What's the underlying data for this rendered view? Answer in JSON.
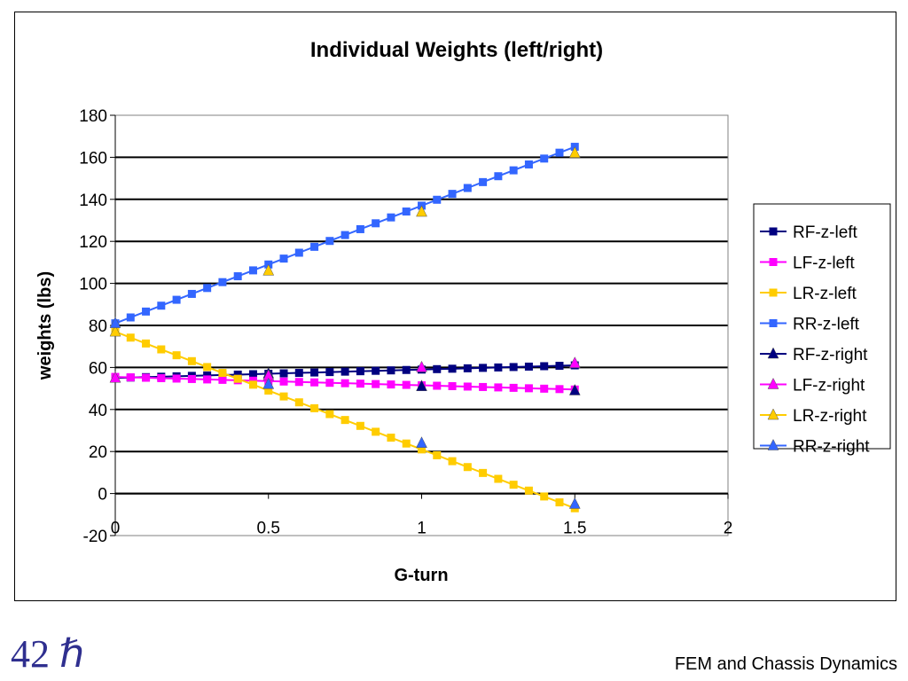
{
  "slide": {
    "number": "42 ℏ",
    "footer": "FEM and Chassis Dynamics"
  },
  "chart_data": {
    "type": "line",
    "title": "Individual Weights (left/right)",
    "xlabel": "G-turn",
    "ylabel": "weights (lbs)",
    "xlim": [
      0,
      2
    ],
    "ylim": [
      -20,
      180
    ],
    "x_ticks": [
      "0",
      "0.5",
      "1",
      "1.5",
      "2"
    ],
    "y_ticks": [
      "-20",
      "0",
      "20",
      "40",
      "60",
      "80",
      "100",
      "120",
      "140",
      "160",
      "180"
    ],
    "grid": "horizontal major gridlines",
    "legend_position": "right",
    "series": [
      {
        "name": "RF-z-left",
        "color": "#000080",
        "marker": "square",
        "x": [
          0,
          0.05,
          0.1,
          0.15,
          0.2,
          0.25,
          0.3,
          0.35,
          0.4,
          0.45,
          0.5,
          0.55,
          0.6,
          0.65,
          0.7,
          0.75,
          0.8,
          0.85,
          0.9,
          0.95,
          1,
          1.05,
          1.1,
          1.15,
          1.2,
          1.25,
          1.3,
          1.35,
          1.4,
          1.45,
          1.5
        ],
        "y": [
          55,
          55.2,
          55.4,
          55.6,
          55.8,
          56,
          56.2,
          56.4,
          56.6,
          56.8,
          57,
          57.2,
          57.4,
          57.6,
          57.8,
          58,
          58.2,
          58.4,
          58.6,
          58.8,
          59,
          59.2,
          59.4,
          59.6,
          59.8,
          60,
          60.2,
          60.4,
          60.6,
          60.8,
          61
        ]
      },
      {
        "name": "LF-z-left",
        "color": "#ff00ff",
        "marker": "square",
        "x": [
          0,
          0.05,
          0.1,
          0.15,
          0.2,
          0.25,
          0.3,
          0.35,
          0.4,
          0.45,
          0.5,
          0.55,
          0.6,
          0.65,
          0.7,
          0.75,
          0.8,
          0.85,
          0.9,
          0.95,
          1,
          1.05,
          1.1,
          1.15,
          1.2,
          1.25,
          1.3,
          1.35,
          1.4,
          1.45,
          1.5
        ],
        "y": [
          55.5,
          55.3,
          55.1,
          54.9,
          54.7,
          54.5,
          54.3,
          54.1,
          53.9,
          53.7,
          53.5,
          53.3,
          53.1,
          52.9,
          52.7,
          52.5,
          52.3,
          52.1,
          51.9,
          51.7,
          51.5,
          51.3,
          51.1,
          50.9,
          50.7,
          50.5,
          50.3,
          50.1,
          49.9,
          49.7,
          49.5
        ]
      },
      {
        "name": "LR-z-left",
        "color": "#ffcc00",
        "marker": "square",
        "x": [
          0,
          0.05,
          0.1,
          0.15,
          0.2,
          0.25,
          0.3,
          0.35,
          0.4,
          0.45,
          0.5,
          0.55,
          0.6,
          0.65,
          0.7,
          0.75,
          0.8,
          0.85,
          0.9,
          0.95,
          1,
          1.05,
          1.1,
          1.15,
          1.2,
          1.25,
          1.3,
          1.35,
          1.4,
          1.45,
          1.5
        ],
        "y": [
          77,
          74.2,
          71.4,
          68.6,
          65.8,
          63,
          60.2,
          57.4,
          54.6,
          51.8,
          49,
          46.2,
          43.4,
          40.6,
          37.8,
          35,
          32.2,
          29.4,
          26.6,
          23.8,
          21,
          18.2,
          15.4,
          12.6,
          9.8,
          7,
          4.2,
          1.4,
          -1.4,
          -4.2,
          -7
        ]
      },
      {
        "name": "RR-z-left",
        "color": "#3366ff",
        "marker": "square",
        "x": [
          0,
          0.05,
          0.1,
          0.15,
          0.2,
          0.25,
          0.3,
          0.35,
          0.4,
          0.45,
          0.5,
          0.55,
          0.6,
          0.65,
          0.7,
          0.75,
          0.8,
          0.85,
          0.9,
          0.95,
          1,
          1.05,
          1.1,
          1.15,
          1.2,
          1.25,
          1.3,
          1.35,
          1.4,
          1.45,
          1.5
        ],
        "y": [
          81,
          83.8,
          86.6,
          89.4,
          92.2,
          95,
          97.8,
          100.6,
          103.4,
          106.2,
          109,
          111.8,
          114.6,
          117.4,
          120.2,
          123,
          125.8,
          128.6,
          131.4,
          134.2,
          137,
          139.8,
          142.6,
          145.4,
          148.2,
          151,
          153.8,
          156.6,
          159.4,
          162.2,
          165
        ]
      },
      {
        "name": "RF-z-right",
        "color": "#000080",
        "marker": "triangle",
        "x": [
          0,
          0.5,
          1,
          1.5
        ],
        "y": [
          55,
          57,
          51,
          49
        ]
      },
      {
        "name": "LF-z-right",
        "color": "#ff00ff",
        "marker": "triangle",
        "x": [
          0,
          0.5,
          1,
          1.5
        ],
        "y": [
          55,
          56,
          60,
          62
        ]
      },
      {
        "name": "LR-z-right",
        "color": "#ffcc00",
        "marker": "triangle",
        "x": [
          0,
          0.5,
          1,
          1.5
        ],
        "y": [
          77,
          106,
          134,
          162
        ]
      },
      {
        "name": "RR-z-right",
        "color": "#3366ff",
        "marker": "triangle",
        "x": [
          0,
          0.5,
          1,
          1.5
        ],
        "y": [
          81,
          52,
          24,
          -5
        ]
      }
    ]
  }
}
